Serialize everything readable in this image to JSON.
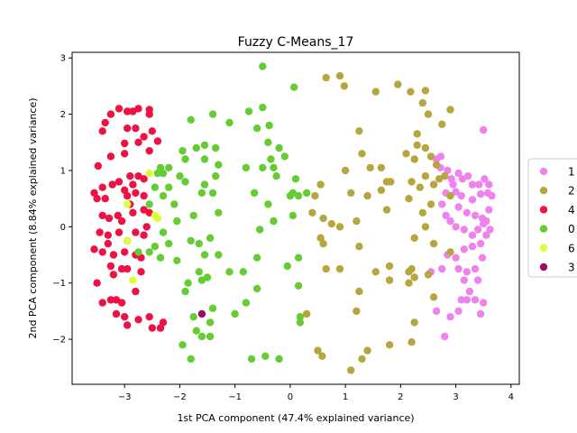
{
  "chart_data": {
    "type": "scatter",
    "title": "Fuzzy C-Means_17",
    "xlabel": "1st PCA component (47.4% explained variance)",
    "ylabel": "2nd PCA component (8.84% explained variance)",
    "xlim": [
      -3.95,
      4.15
    ],
    "ylim": [
      -2.8,
      3.1
    ],
    "xticks": [
      -3,
      -2,
      -1,
      0,
      1,
      2,
      3,
      4
    ],
    "yticks": [
      -2,
      -1,
      0,
      1,
      2,
      3
    ],
    "legend_position": "right",
    "series": [
      {
        "name": "1",
        "color": "#ee82ee",
        "points": [
          [
            2.65,
            1.2
          ],
          [
            2.73,
            1.25
          ],
          [
            2.85,
            1.0
          ],
          [
            2.92,
            0.85
          ],
          [
            3.05,
            0.95
          ],
          [
            3.12,
            0.85
          ],
          [
            3.22,
            0.9
          ],
          [
            3.3,
            0.75
          ],
          [
            3.42,
            0.75
          ],
          [
            3.52,
            0.85
          ],
          [
            3.6,
            0.75
          ],
          [
            3.58,
            0.6
          ],
          [
            3.45,
            0.58
          ],
          [
            3.3,
            0.48
          ],
          [
            3.1,
            0.55
          ],
          [
            3.0,
            0.62
          ],
          [
            2.95,
            0.75
          ],
          [
            2.82,
            0.6
          ],
          [
            2.75,
            0.4
          ],
          [
            3.05,
            0.35
          ],
          [
            3.2,
            0.25
          ],
          [
            3.35,
            0.2
          ],
          [
            3.48,
            0.15
          ],
          [
            3.6,
            0.3
          ],
          [
            3.5,
            0.05
          ],
          [
            3.4,
            -0.05
          ],
          [
            3.55,
            -0.15
          ],
          [
            3.3,
            -0.15
          ],
          [
            3.15,
            -0.05
          ],
          [
            3.0,
            0.0
          ],
          [
            2.9,
            0.1
          ],
          [
            2.82,
            0.2
          ],
          [
            3.62,
            -0.05
          ],
          [
            3.45,
            -0.3
          ],
          [
            3.3,
            -0.35
          ],
          [
            3.15,
            -0.4
          ],
          [
            3.0,
            -0.55
          ],
          [
            2.85,
            -0.5
          ],
          [
            2.75,
            -0.75
          ],
          [
            3.48,
            -0.55
          ],
          [
            3.35,
            -0.75
          ],
          [
            3.2,
            -0.8
          ],
          [
            3.05,
            -0.75
          ],
          [
            3.4,
            -0.95
          ],
          [
            3.25,
            -1.15
          ],
          [
            3.1,
            -1.3
          ],
          [
            3.2,
            -1.3
          ],
          [
            3.35,
            -1.3
          ],
          [
            3.5,
            -1.35
          ],
          [
            3.45,
            -1.55
          ],
          [
            3.05,
            -1.5
          ],
          [
            2.9,
            -1.6
          ],
          [
            2.65,
            -1.5
          ],
          [
            2.8,
            -1.95
          ],
          [
            2.55,
            -0.8
          ],
          [
            3.5,
            1.72
          ],
          [
            3.65,
            0.55
          ],
          [
            2.72,
            1.05
          ],
          [
            3.55,
            0.1
          ],
          [
            3.15,
            -0.95
          ]
        ]
      },
      {
        "name": "2",
        "color": "#b5a63d",
        "points": [
          [
            0.65,
            2.65
          ],
          [
            0.9,
            2.68
          ],
          [
            0.98,
            2.5
          ],
          [
            1.55,
            2.4
          ],
          [
            1.95,
            2.53
          ],
          [
            2.18,
            2.4
          ],
          [
            2.45,
            2.42
          ],
          [
            2.4,
            2.2
          ],
          [
            2.5,
            2.0
          ],
          [
            2.9,
            2.08
          ],
          [
            2.75,
            1.82
          ],
          [
            1.25,
            1.7
          ],
          [
            2.3,
            1.65
          ],
          [
            2.3,
            1.45
          ],
          [
            2.45,
            1.4
          ],
          [
            2.55,
            1.25
          ],
          [
            1.3,
            1.3
          ],
          [
            1.45,
            1.05
          ],
          [
            1.65,
            1.05
          ],
          [
            2.1,
            1.3
          ],
          [
            2.25,
            1.2
          ],
          [
            1.75,
            0.8
          ],
          [
            1.82,
            0.8
          ],
          [
            2.2,
            0.8
          ],
          [
            2.35,
            0.7
          ],
          [
            2.45,
            0.9
          ],
          [
            2.6,
            0.75
          ],
          [
            2.7,
            0.85
          ],
          [
            2.8,
            0.9
          ],
          [
            1.1,
            0.6
          ],
          [
            1.4,
            0.55
          ],
          [
            1.65,
            0.65
          ],
          [
            0.55,
            0.75
          ],
          [
            0.45,
            0.55
          ],
          [
            0.4,
            0.25
          ],
          [
            0.6,
            0.15
          ],
          [
            0.75,
            0.05
          ],
          [
            0.9,
            0.0
          ],
          [
            1.2,
            0.1
          ],
          [
            0.55,
            -0.2
          ],
          [
            1.25,
            -0.35
          ],
          [
            2.15,
            0.5
          ],
          [
            2.4,
            0.25
          ],
          [
            2.55,
            0.4
          ],
          [
            2.25,
            -0.2
          ],
          [
            2.45,
            0.0
          ],
          [
            2.6,
            -0.3
          ],
          [
            2.9,
            -0.45
          ],
          [
            2.5,
            -0.85
          ],
          [
            2.2,
            -0.75
          ],
          [
            2.25,
            -0.9
          ],
          [
            2.15,
            -0.8
          ],
          [
            1.8,
            -0.7
          ],
          [
            1.8,
            -0.95
          ],
          [
            2.15,
            -1.0
          ],
          [
            1.55,
            -0.8
          ],
          [
            1.25,
            -1.15
          ],
          [
            1.2,
            -1.5
          ],
          [
            0.9,
            -0.75
          ],
          [
            0.65,
            -0.75
          ],
          [
            0.3,
            -1.55
          ],
          [
            0.5,
            -2.2
          ],
          [
            0.58,
            -2.3
          ],
          [
            1.1,
            -2.55
          ],
          [
            1.3,
            -2.35
          ],
          [
            1.4,
            -2.2
          ],
          [
            1.8,
            -2.1
          ],
          [
            2.2,
            -2.05
          ],
          [
            2.25,
            -1.7
          ],
          [
            2.6,
            -1.25
          ],
          [
            2.9,
            0.55
          ],
          [
            2.65,
            1.1
          ],
          [
            0.6,
            -0.3
          ],
          [
            1.75,
            0.3
          ],
          [
            1.0,
            1.0
          ]
        ]
      },
      {
        "name": "4",
        "color": "#ee1144",
        "points": [
          [
            -3.25,
            2.0
          ],
          [
            -3.1,
            2.1
          ],
          [
            -2.95,
            2.05
          ],
          [
            -2.85,
            2.05
          ],
          [
            -2.75,
            2.1
          ],
          [
            -2.55,
            2.08
          ],
          [
            -2.55,
            2.0
          ],
          [
            -3.35,
            1.85
          ],
          [
            -3.4,
            1.7
          ],
          [
            -2.95,
            1.75
          ],
          [
            -2.8,
            1.75
          ],
          [
            -2.65,
            1.6
          ],
          [
            -2.75,
            1.5
          ],
          [
            -3.0,
            1.48
          ],
          [
            -3.0,
            1.3
          ],
          [
            -3.25,
            1.25
          ],
          [
            -2.5,
            1.7
          ],
          [
            -2.4,
            1.52
          ],
          [
            -2.55,
            1.35
          ],
          [
            -3.48,
            1.08
          ],
          [
            -3.55,
            0.6
          ],
          [
            -3.4,
            0.7
          ],
          [
            -3.35,
            0.5
          ],
          [
            -3.22,
            0.75
          ],
          [
            -3.1,
            0.8
          ],
          [
            -3.0,
            0.65
          ],
          [
            -2.9,
            0.9
          ],
          [
            -2.75,
            0.9
          ],
          [
            -2.65,
            0.85
          ],
          [
            -2.85,
            0.75
          ],
          [
            -2.8,
            0.6
          ],
          [
            -2.95,
            0.55
          ],
          [
            -2.65,
            0.55
          ],
          [
            -3.5,
            0.5
          ],
          [
            -3.28,
            0.15
          ],
          [
            -3.4,
            0.2
          ],
          [
            -3.12,
            0.2
          ],
          [
            -3.05,
            0.1
          ],
          [
            -2.85,
            0.25
          ],
          [
            -2.65,
            0.3
          ],
          [
            -2.55,
            0.25
          ],
          [
            -3.45,
            -0.1
          ],
          [
            -3.3,
            -0.15
          ],
          [
            -3.1,
            -0.1
          ],
          [
            -2.95,
            -0.25
          ],
          [
            -2.8,
            -0.1
          ],
          [
            -2.65,
            -0.15
          ],
          [
            -3.55,
            -0.4
          ],
          [
            -3.4,
            -0.45
          ],
          [
            -3.2,
            -0.5
          ],
          [
            -3.0,
            -0.45
          ],
          [
            -2.8,
            -0.5
          ],
          [
            -2.7,
            -0.55
          ],
          [
            -3.25,
            -0.7
          ],
          [
            -3.05,
            -0.75
          ],
          [
            -2.95,
            -0.75
          ],
          [
            -2.7,
            -0.8
          ],
          [
            -3.5,
            -1.0
          ],
          [
            -3.2,
            -0.85
          ],
          [
            -3.4,
            -1.35
          ],
          [
            -3.25,
            -1.3
          ],
          [
            -3.15,
            -1.3
          ],
          [
            -3.05,
            -1.35
          ],
          [
            -2.8,
            -1.15
          ],
          [
            -3.0,
            -1.6
          ],
          [
            -2.95,
            -1.75
          ],
          [
            -2.75,
            -1.65
          ],
          [
            -2.55,
            -1.6
          ],
          [
            -2.3,
            -1.7
          ],
          [
            -2.35,
            -1.8
          ],
          [
            -2.5,
            -1.8
          ],
          [
            -3.15,
            -1.55
          ],
          [
            -3.3,
            -0.3
          ],
          [
            -2.6,
            0.0
          ],
          [
            -2.9,
            0.4
          ]
        ]
      },
      {
        "name": "0",
        "color": "#66cc33",
        "points": [
          [
            -0.5,
            2.85
          ],
          [
            0.07,
            2.48
          ],
          [
            -0.75,
            2.05
          ],
          [
            -0.5,
            2.12
          ],
          [
            -1.4,
            2.0
          ],
          [
            -1.8,
            1.9
          ],
          [
            -2.35,
            1.05
          ],
          [
            -2.2,
            1.05
          ],
          [
            -1.95,
            1.35
          ],
          [
            -1.7,
            1.4
          ],
          [
            -1.55,
            1.45
          ],
          [
            -1.35,
            1.4
          ],
          [
            -1.1,
            1.85
          ],
          [
            -0.6,
            1.75
          ],
          [
            -0.38,
            1.8
          ],
          [
            -0.4,
            1.5
          ],
          [
            -0.2,
            1.4
          ],
          [
            -0.1,
            1.25
          ],
          [
            -0.35,
            1.2
          ],
          [
            -0.3,
            1.05
          ],
          [
            -0.5,
            1.05
          ],
          [
            -0.8,
            1.05
          ],
          [
            -1.3,
            1.1
          ],
          [
            -1.55,
            1.2
          ],
          [
            -1.9,
            1.2
          ],
          [
            -1.35,
            0.9
          ],
          [
            -1.55,
            0.75
          ],
          [
            -1.4,
            0.6
          ],
          [
            -1.9,
            0.8
          ],
          [
            -2.0,
            0.9
          ],
          [
            -2.2,
            0.7
          ],
          [
            -2.3,
            0.55
          ],
          [
            -2.1,
            0.4
          ],
          [
            -2.45,
            0.7
          ],
          [
            -2.55,
            0.4
          ],
          [
            -2.4,
            0.95
          ],
          [
            -2.05,
            0.1
          ],
          [
            -1.75,
            0.2
          ],
          [
            -1.6,
            0.6
          ],
          [
            -1.3,
            0.25
          ],
          [
            -0.65,
            0.6
          ],
          [
            -0.4,
            0.4
          ],
          [
            -0.25,
            0.9
          ],
          [
            0.0,
            0.55
          ],
          [
            0.05,
            0.6
          ],
          [
            0.1,
            0.85
          ],
          [
            0.3,
            0.6
          ],
          [
            0.05,
            0.2
          ],
          [
            -0.55,
            -0.05
          ],
          [
            -0.3,
            0.1
          ],
          [
            -2.3,
            -0.1
          ],
          [
            -2.45,
            -0.35
          ],
          [
            -2.35,
            -0.55
          ],
          [
            -2.2,
            -0.3
          ],
          [
            -2.05,
            -0.6
          ],
          [
            -1.8,
            -0.25
          ],
          [
            -1.65,
            -0.3
          ],
          [
            -1.45,
            -0.2
          ],
          [
            -1.3,
            -0.5
          ],
          [
            -1.55,
            -0.5
          ],
          [
            -1.65,
            -0.8
          ],
          [
            -1.5,
            -0.9
          ],
          [
            -1.1,
            -0.8
          ],
          [
            -0.85,
            -0.8
          ],
          [
            -0.6,
            -0.55
          ],
          [
            -0.05,
            -0.7
          ],
          [
            0.15,
            -0.55
          ],
          [
            0.15,
            -1.05
          ],
          [
            -0.6,
            -1.1
          ],
          [
            -0.8,
            -1.35
          ],
          [
            -1.0,
            -1.55
          ],
          [
            -1.4,
            -1.45
          ],
          [
            -1.45,
            -1.7
          ],
          [
            -1.75,
            -1.6
          ],
          [
            -1.85,
            -1.0
          ],
          [
            -1.9,
            -1.15
          ],
          [
            -1.95,
            -2.1
          ],
          [
            -1.7,
            -1.85
          ],
          [
            -1.6,
            -1.95
          ],
          [
            -1.45,
            -1.95
          ],
          [
            -1.8,
            -2.35
          ],
          [
            -0.7,
            -2.35
          ],
          [
            -0.45,
            -2.3
          ],
          [
            -0.2,
            -2.35
          ],
          [
            0.18,
            -1.6
          ],
          [
            0.18,
            -1.7
          ],
          [
            0.15,
            0.55
          ],
          [
            -2.55,
            -0.45
          ],
          [
            -2.75,
            -0.45
          ],
          [
            -2.3,
            0.95
          ],
          [
            -1.6,
            -0.95
          ]
        ]
      },
      {
        "name": "6",
        "color": "#ddff33",
        "points": [
          [
            -2.55,
            0.95
          ],
          [
            -2.95,
            0.4
          ],
          [
            -2.45,
            0.2
          ],
          [
            -2.95,
            -0.25
          ],
          [
            -2.4,
            0.15
          ],
          [
            -2.85,
            -0.95
          ]
        ]
      },
      {
        "name": "3",
        "color": "#991166",
        "points": [
          [
            -1.6,
            -1.55
          ]
        ]
      }
    ]
  }
}
